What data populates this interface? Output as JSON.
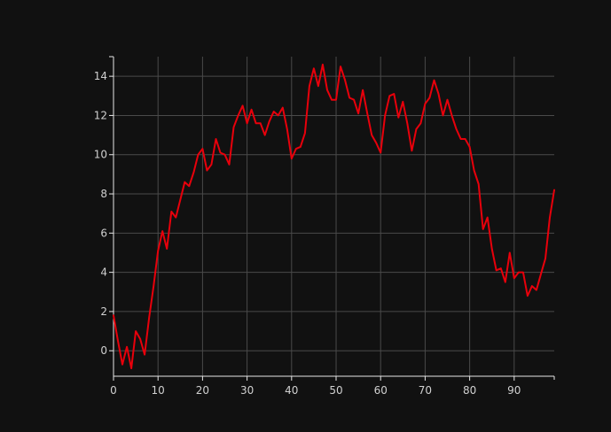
{
  "chart_data": {
    "type": "line",
    "title": "",
    "xlabel": "",
    "ylabel": "",
    "xlim": [
      0,
      99
    ],
    "ylim": [
      -1.3,
      15
    ],
    "grid": true,
    "background": "#111111",
    "grid_color": "#4a4a4a",
    "xticks": [
      0,
      10,
      20,
      30,
      40,
      50,
      60,
      70,
      80,
      90
    ],
    "yticks": [
      0,
      2,
      4,
      6,
      8,
      10,
      12,
      14
    ],
    "series": [
      {
        "color": "#e8000b",
        "x": [
          0,
          1,
          2,
          3,
          4,
          5,
          6,
          7,
          8,
          9,
          10,
          11,
          12,
          13,
          14,
          15,
          16,
          17,
          18,
          19,
          20,
          21,
          22,
          23,
          24,
          25,
          26,
          27,
          28,
          29,
          30,
          31,
          32,
          33,
          34,
          35,
          36,
          37,
          38,
          39,
          40,
          41,
          42,
          43,
          44,
          45,
          46,
          47,
          48,
          49,
          50,
          51,
          52,
          53,
          54,
          55,
          56,
          57,
          58,
          59,
          60,
          61,
          62,
          63,
          64,
          65,
          66,
          67,
          68,
          69,
          70,
          71,
          72,
          73,
          74,
          75,
          76,
          77,
          78,
          79,
          80,
          81,
          82,
          83,
          84,
          85,
          86,
          87,
          88,
          89,
          90,
          91,
          92,
          93,
          94,
          95,
          96,
          97,
          98,
          99
        ],
        "y": [
          1.8,
          0.5,
          -0.7,
          0.2,
          -0.9,
          1.0,
          0.6,
          -0.2,
          1.7,
          3.3,
          5.1,
          6.1,
          5.2,
          7.1,
          6.8,
          7.7,
          8.6,
          8.4,
          9.1,
          10.0,
          10.3,
          9.2,
          9.5,
          10.8,
          10.1,
          10.0,
          9.5,
          11.4,
          12.0,
          12.5,
          11.6,
          12.3,
          11.6,
          11.6,
          11.0,
          11.7,
          12.2,
          12.0,
          12.4,
          11.3,
          9.8,
          10.3,
          10.4,
          11.1,
          13.5,
          14.4,
          13.5,
          14.6,
          13.3,
          12.8,
          12.8,
          14.5,
          13.8,
          12.9,
          12.8,
          12.1,
          13.3,
          12.1,
          11.0,
          10.6,
          10.1,
          12.0,
          13.0,
          13.1,
          11.9,
          12.7,
          11.6,
          10.2,
          11.3,
          11.6,
          12.6,
          12.9,
          13.8,
          13.1,
          12.0,
          12.8,
          12.0,
          11.3,
          10.8,
          10.8,
          10.4,
          9.2,
          8.5,
          6.2,
          6.8,
          5.2,
          4.1,
          4.2,
          3.5,
          5.0,
          3.7,
          4.0,
          4.0,
          2.8,
          3.3,
          3.1,
          3.9,
          4.7,
          6.8,
          8.2
        ]
      }
    ]
  }
}
